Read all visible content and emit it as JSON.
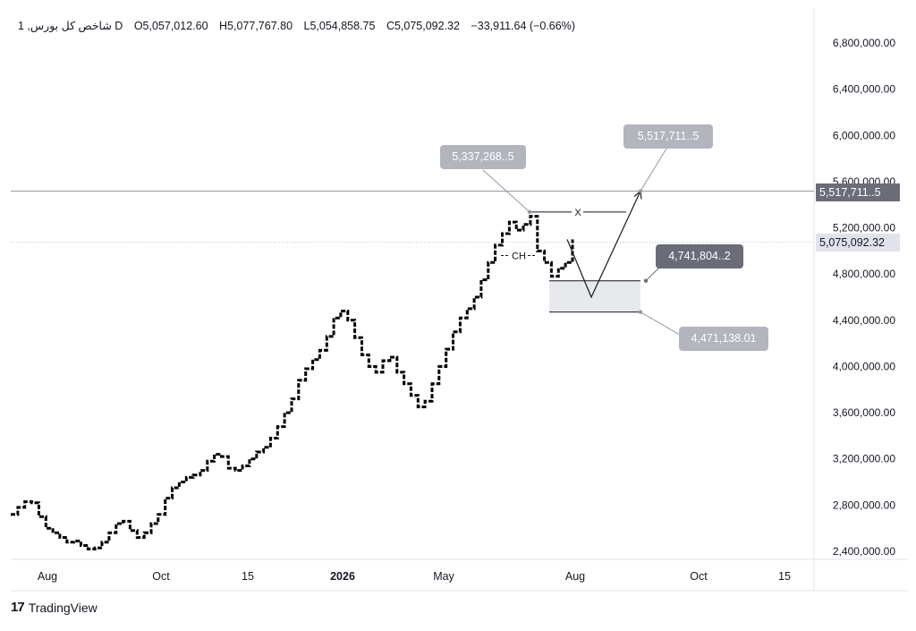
{
  "header": {
    "symbol": "1 ,شاخص کل بورس D",
    "open": "O5,057,012.60",
    "high": "H5,077,767.80",
    "low": "L5,054,858.75",
    "close": "C5,075,092.32",
    "change": "−33,911.64 (−0.66%)"
  },
  "footer": {
    "logo": "17",
    "brand": "TradingView"
  },
  "colors": {
    "price_line": "#9598a1",
    "current_line": "#c3c5cc",
    "callout_light": "#b2b5be",
    "callout_dark": "#6a6d78",
    "zone_fill": "#e8e9ec"
  },
  "callouts": {
    "c1": "5,337,268..5",
    "c2": "5,517,711..5",
    "c3": "4,741,804..2",
    "c4": "4,471,138.01"
  },
  "price_tags": {
    "level": "5,517,711..5",
    "current": "5,075,092.32"
  },
  "annotations": {
    "x_label": "X",
    "ch_label": "CH"
  },
  "chart_data": {
    "type": "line",
    "title": "",
    "xlabel": "",
    "ylabel": "",
    "x_ticks": [
      "Aug",
      "Oct",
      "15",
      "2026",
      "May",
      "Aug",
      "Oct",
      "15"
    ],
    "y_ticks": [
      2400000,
      2800000,
      3200000,
      3600000,
      4000000,
      4400000,
      4800000,
      5200000,
      5600000,
      6000000,
      6400000,
      6800000
    ],
    "y_tick_labels": [
      "2,400,000.00",
      "2,800,000.00",
      "3,200,000.00",
      "3,600,000.00",
      "4,000,000.00",
      "4,400,000.00",
      "4,800,000.00",
      "5,200,000.00",
      "5,600,000.00",
      "6,000,000.00",
      "6,400,000.00",
      "6,800,000.00"
    ],
    "ylim": [
      2300000,
      7000000
    ],
    "grid": false,
    "series": [
      {
        "values": [
          2720000,
          2780000,
          2830000,
          2820000,
          2700000,
          2600000,
          2560000,
          2520000,
          2480000,
          2490000,
          2450000,
          2420000,
          2430000,
          2480000,
          2560000,
          2640000,
          2660000,
          2580000,
          2520000,
          2560000,
          2640000,
          2720000,
          2860000,
          2950000,
          3000000,
          3040000,
          3060000,
          3100000,
          3180000,
          3240000,
          3220000,
          3120000,
          3100000,
          3140000,
          3200000,
          3260000,
          3300000,
          3380000,
          3480000,
          3600000,
          3720000,
          3880000,
          3980000,
          4060000,
          4140000,
          4260000,
          4420000,
          4480000,
          4400000,
          4250000,
          4100000,
          4000000,
          3950000,
          4050000,
          4080000,
          3950000,
          3850000,
          3750000,
          3650000,
          3700000,
          3850000,
          4000000,
          4150000,
          4300000,
          4420000,
          4500000,
          4600000,
          4750000,
          4900000,
          5050000,
          5150000,
          5250000,
          5180000,
          5230000,
          5300000,
          5000000,
          4900000,
          4780000,
          4850000,
          4900000,
          5100000
        ]
      }
    ],
    "projection": [
      4741804.2,
      4600000,
      5517711.5
    ],
    "levels": {
      "horizontal": 5517711.5,
      "current_close": 5075092.32,
      "zone_top": 4741804.2,
      "zone_bottom": 4471138.01,
      "x_level": 5337268.5,
      "ch_level": 4960000
    }
  }
}
